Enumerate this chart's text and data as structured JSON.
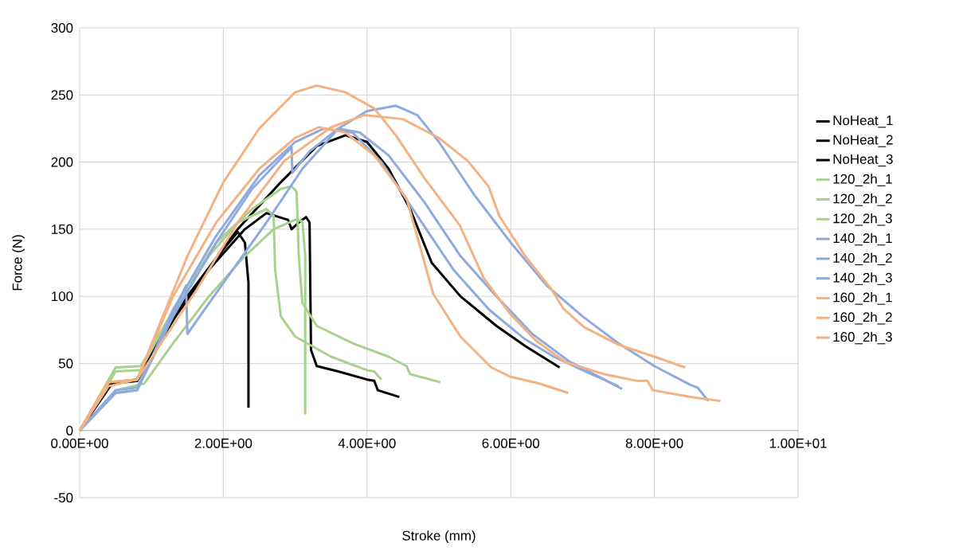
{
  "chart_data": {
    "type": "line",
    "xlabel": "Stroke (mm)",
    "ylabel": "Force (N)",
    "xlim": [
      0,
      10
    ],
    "ylim": [
      -50,
      300
    ],
    "xticks": [
      {
        "value": 0,
        "label": "0.00E+00"
      },
      {
        "value": 2,
        "label": "2.00E+00"
      },
      {
        "value": 4,
        "label": "4.00E+00"
      },
      {
        "value": 6,
        "label": "6.00E+00"
      },
      {
        "value": 8,
        "label": "8.00E+00"
      },
      {
        "value": 10,
        "label": "1.00E+01"
      }
    ],
    "yticks": [
      -50,
      0,
      50,
      100,
      150,
      200,
      250,
      300
    ],
    "grid": true,
    "legend": "right",
    "line_style": "solid",
    "series": [
      {
        "name": "NoHeat_1",
        "color": "#000000",
        "x": [
          0,
          0.4,
          0.8,
          1.0,
          1.5,
          2.0,
          2.2,
          2.3,
          2.35,
          2.35
        ],
        "values": [
          0,
          35,
          37,
          60,
          100,
          135,
          148,
          140,
          110,
          17
        ]
      },
      {
        "name": "NoHeat_2",
        "color": "#000000",
        "x": [
          0,
          0.45,
          0.8,
          1.2,
          1.8,
          2.3,
          2.6,
          2.9,
          2.95,
          3.05,
          3.15,
          3.2,
          3.22,
          3.3,
          3.6,
          4.0,
          4.1,
          4.15,
          4.45
        ],
        "values": [
          0,
          36,
          38,
          75,
          120,
          150,
          162,
          157,
          150,
          155,
          159,
          155,
          60,
          48,
          44,
          38,
          37,
          30,
          25
        ]
      },
      {
        "name": "NoHeat_3",
        "color": "#000000",
        "x": [
          0,
          0.45,
          0.8,
          1.5,
          2.2,
          2.8,
          3.3,
          3.7,
          4.0,
          4.3,
          4.6,
          4.9,
          5.3,
          5.8,
          6.2,
          6.68
        ],
        "values": [
          0,
          35,
          37,
          100,
          150,
          185,
          212,
          220,
          215,
          195,
          165,
          125,
          100,
          78,
          63,
          47
        ]
      },
      {
        "name": "120_2h_1",
        "color": "#a9d18e",
        "x": [
          0,
          0.5,
          0.85,
          1.2,
          1.8,
          2.2,
          2.6,
          2.7,
          2.72,
          2.8,
          3.0,
          3.5,
          4.0,
          4.1,
          4.2
        ],
        "values": [
          0,
          47,
          48,
          80,
          130,
          155,
          165,
          160,
          120,
          85,
          70,
          55,
          45,
          44,
          38
        ]
      },
      {
        "name": "120_2h_2",
        "color": "#a9d18e",
        "x": [
          0,
          0.5,
          0.85,
          1.3,
          1.9,
          2.4,
          2.8,
          2.95,
          3.02,
          3.05,
          3.1,
          3.3,
          3.8,
          4.3,
          4.55,
          4.6,
          5.02
        ],
        "values": [
          0,
          44,
          45,
          90,
          140,
          165,
          180,
          182,
          178,
          130,
          95,
          78,
          65,
          55,
          48,
          42,
          36
        ]
      },
      {
        "name": "120_2h_3",
        "color": "#a9d18e",
        "x": [
          0,
          0.5,
          0.9,
          1.3,
          1.8,
          2.3,
          2.7,
          3.0,
          3.1,
          3.14,
          3.14
        ],
        "values": [
          0,
          30,
          35,
          65,
          100,
          130,
          150,
          157,
          156,
          130,
          12
        ]
      },
      {
        "name": "140_2h_1",
        "color": "#8faadc",
        "x": [
          0,
          0.5,
          0.8,
          1.2,
          1.48,
          1.5,
          2.0,
          2.6,
          3.1,
          3.6,
          4.0,
          4.4,
          4.7,
          5.0,
          5.5,
          6.0,
          6.5,
          7.0,
          7.5,
          8.0,
          8.5,
          8.6,
          8.75
        ],
        "values": [
          0,
          30,
          32,
          75,
          108,
          72,
          110,
          155,
          195,
          225,
          238,
          242,
          235,
          215,
          175,
          140,
          108,
          85,
          65,
          48,
          34,
          32,
          22
        ]
      },
      {
        "name": "140_2h_2",
        "color": "#8faadc",
        "x": [
          0,
          0.5,
          0.8,
          1.3,
          1.9,
          2.4,
          2.95,
          2.96,
          3.2,
          3.6,
          3.9,
          4.3,
          4.8,
          5.3,
          5.8,
          6.3,
          6.8,
          7.3,
          7.55
        ],
        "values": [
          0,
          28,
          30,
          85,
          140,
          180,
          211,
          192,
          208,
          225,
          222,
          205,
          170,
          130,
          100,
          72,
          52,
          38,
          31
        ]
      },
      {
        "name": "140_2h_3",
        "color": "#8faadc",
        "x": [
          0,
          0.5,
          0.8,
          1.3,
          1.9,
          2.5,
          3.0,
          3.4,
          3.8,
          4.2,
          4.7,
          5.2,
          5.7,
          6.2,
          6.6,
          7.0,
          7.5
        ],
        "values": [
          0,
          28,
          30,
          90,
          145,
          190,
          215,
          225,
          222,
          200,
          160,
          120,
          90,
          68,
          55,
          45,
          33
        ]
      },
      {
        "name": "160_2h_1",
        "color": "#f4b183",
        "x": [
          0,
          0.4,
          0.8,
          1.5,
          2.0,
          2.5,
          3.0,
          3.3,
          3.7,
          4.1,
          4.4,
          4.8,
          5.29,
          5.62,
          5.99,
          6.35,
          6.76,
          7.3,
          7.76,
          7.9,
          7.98,
          8.5,
          8.92
        ],
        "values": [
          0,
          36,
          38,
          130,
          185,
          225,
          252,
          257,
          252,
          240,
          220,
          188,
          153,
          114,
          87,
          67,
          51,
          42,
          37,
          37,
          30,
          25,
          22
        ]
      },
      {
        "name": "160_2h_2",
        "color": "#f4b183",
        "x": [
          0,
          0.4,
          0.8,
          1.3,
          1.9,
          2.5,
          3.0,
          3.33,
          3.7,
          4.1,
          4.55,
          4.92,
          5.3,
          5.73,
          6.0,
          6.4,
          6.8
        ],
        "values": [
          0,
          36,
          38,
          100,
          155,
          195,
          218,
          226,
          222,
          205,
          173,
          102,
          70,
          47,
          40,
          35,
          28
        ]
      },
      {
        "name": "160_2h_3",
        "color": "#f4b183",
        "x": [
          0,
          0.4,
          0.8,
          1.63,
          2.2,
          2.85,
          3.5,
          3.96,
          4.5,
          5.0,
          5.4,
          5.69,
          5.84,
          6.2,
          6.57,
          6.73,
          7.02,
          7.5,
          8.0,
          8.43
        ],
        "values": [
          0,
          33,
          38,
          105,
          155,
          201,
          226,
          235,
          232,
          218,
          201,
          182,
          160,
          130,
          105,
          91,
          77,
          64,
          55,
          47
        ]
      }
    ]
  }
}
